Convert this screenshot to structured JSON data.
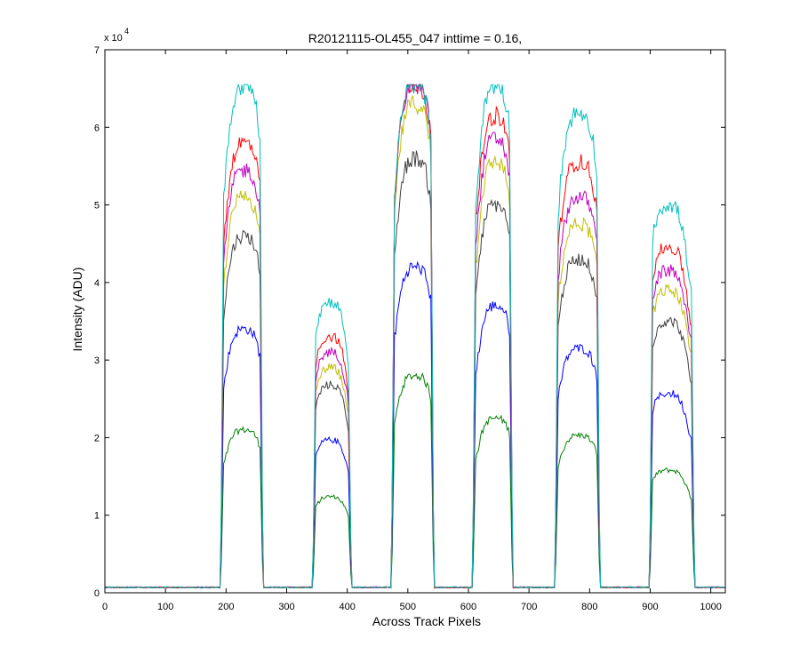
{
  "chart_data": {
    "type": "line",
    "title": "R20121115-OL455_047 inttime = 0.16,",
    "xlabel": "Across Track Pixels",
    "ylabel": "Intensity (ADU)",
    "y_exponent_label": "x 10",
    "y_exponent": "4",
    "xlim": [
      0,
      1024
    ],
    "ylim": [
      0,
      70000
    ],
    "x_ticks": [
      0,
      100,
      200,
      300,
      400,
      500,
      600,
      700,
      800,
      900,
      1000
    ],
    "y_ticks": [
      0,
      10000,
      20000,
      30000,
      40000,
      50000,
      60000,
      70000
    ],
    "y_tick_labels": [
      "0",
      "1",
      "2",
      "3",
      "4",
      "5",
      "6",
      "7"
    ],
    "grid": false,
    "legend": "none",
    "baseline": 700,
    "saturation": 65500,
    "bands": [
      {
        "x_start": 196,
        "x_end": 256,
        "x_peak": 230
      },
      {
        "x_start": 348,
        "x_end": 402,
        "x_peak": 372
      },
      {
        "x_start": 478,
        "x_end": 538,
        "x_peak": 512
      },
      {
        "x_start": 612,
        "x_end": 668,
        "x_peak": 645
      },
      {
        "x_start": 748,
        "x_end": 812,
        "x_peak": 783
      },
      {
        "x_start": 904,
        "x_end": 968,
        "x_peak": 930
      }
    ],
    "series": [
      {
        "color": "#008000",
        "band_peaks": [
          21000,
          12400,
          28000,
          22500,
          20300,
          15800
        ]
      },
      {
        "color": "#0000ff",
        "band_peaks": [
          34000,
          19700,
          42000,
          37000,
          31500,
          25700
        ]
      },
      {
        "color": "#404040",
        "band_peaks": [
          46000,
          26800,
          56000,
          50000,
          43000,
          35000
        ]
      },
      {
        "color": "#bfbf00",
        "band_peaks": [
          51000,
          29000,
          63000,
          55500,
          47500,
          39000
        ]
      },
      {
        "color": "#bf00bf",
        "band_peaks": [
          54500,
          31000,
          65500,
          58500,
          51000,
          41500
        ]
      },
      {
        "color": "#ff0000",
        "band_peaks": [
          58000,
          33000,
          65500,
          61500,
          55500,
          44500
        ]
      },
      {
        "color": "#00bfbf",
        "band_peaks": [
          65500,
          37500,
          65500,
          65500,
          61800,
          50000
        ]
      }
    ]
  }
}
